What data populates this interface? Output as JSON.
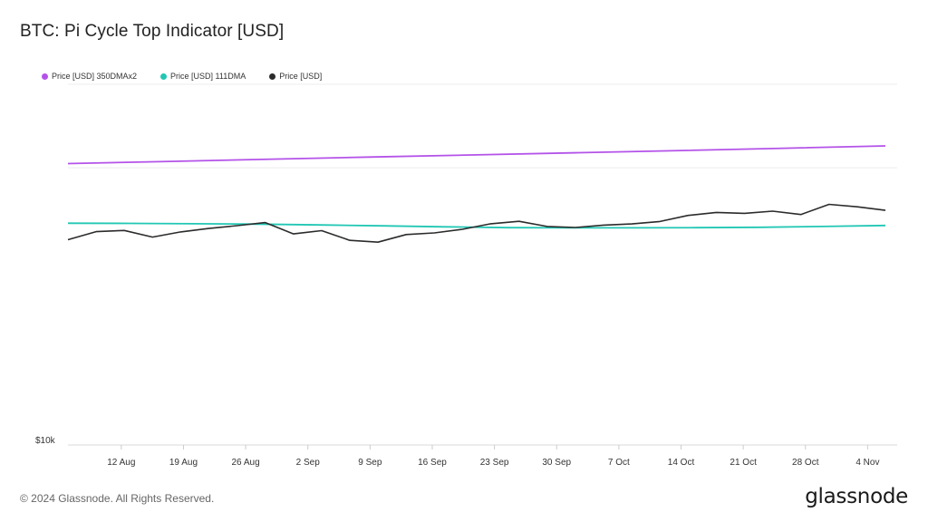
{
  "header": {
    "title": "BTC: Pi Cycle Top Indicator [USD]"
  },
  "legend": [
    {
      "label": "Price [USD] 350DMAx2",
      "color": "#b453e8"
    },
    {
      "label": "Price [USD] 111DMA",
      "color": "#21c7b4"
    },
    {
      "label": "Price [USD]",
      "color": "#2b2b2b"
    }
  ],
  "footer": {
    "copyright": "© 2024 Glassnode. All Rights Reserved.",
    "brand": "glassnode"
  },
  "chart_data": {
    "type": "line",
    "title": "BTC: Pi Cycle Top Indicator [USD]",
    "xlabel": "",
    "ylabel": "",
    "x_start": "2024-08-06",
    "x_end": "2024-11-06",
    "x_ticks": [
      "12 Aug",
      "19 Aug",
      "26 Aug",
      "2 Sep",
      "9 Sep",
      "16 Sep",
      "23 Sep",
      "30 Sep",
      "7 Oct",
      "14 Oct",
      "21 Oct",
      "28 Oct",
      "4 Nov"
    ],
    "y_scale": "log",
    "y_ticks": [
      "$10k"
    ],
    "ylim": [
      10000,
      200000
    ],
    "grid": "horizontal",
    "legend_position": "top-left",
    "series": [
      {
        "name": "Price [USD] 350DMAx2",
        "color": "#b453e8",
        "values": [
          103500,
          105400,
          107400,
          109400,
          111300,
          113300,
          115400,
          117600,
          119900
        ]
      },
      {
        "name": "Price [USD] 111DMA",
        "color": "#21c7b4",
        "values": [
          63100,
          63000,
          62800,
          62600,
          62200,
          61700,
          61200,
          60800,
          60700,
          60700,
          60800,
          61000,
          61400,
          61900
        ]
      },
      {
        "name": "Price [USD]",
        "color": "#2b2b2b",
        "values": [
          55000,
          58800,
          59400,
          56200,
          58700,
          60400,
          61800,
          63400,
          57700,
          59300,
          54700,
          53900,
          57400,
          58200,
          60000,
          62800,
          64100,
          61400,
          60900,
          62100,
          62700,
          64000,
          67300,
          69000,
          68500,
          69700,
          67800,
          73800,
          72300,
          70200
        ]
      }
    ]
  }
}
